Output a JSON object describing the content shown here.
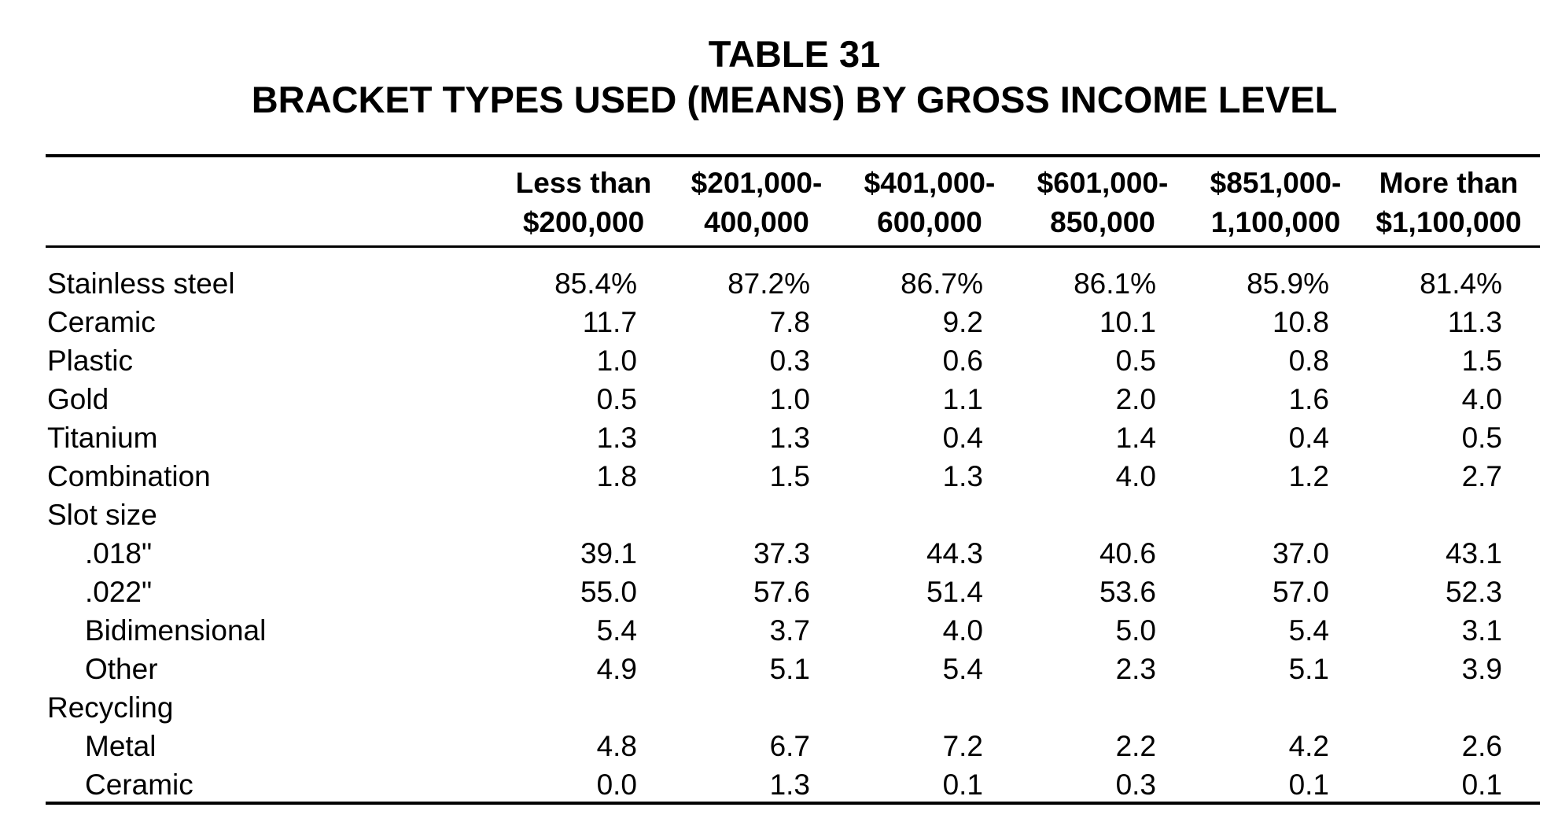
{
  "title": {
    "line1": "TABLE 31",
    "line2": "BRACKET TYPES USED (MEANS) BY GROSS INCOME LEVEL"
  },
  "columns": [
    {
      "line1": "Less than",
      "line2": "$200,000"
    },
    {
      "line1": "$201,000-",
      "line2": "400,000"
    },
    {
      "line1": "$401,000-",
      "line2": "600,000"
    },
    {
      "line1": "$601,000-",
      "line2": "850,000"
    },
    {
      "line1": "$851,000-",
      "line2": "1,100,000"
    },
    {
      "line1": "More than",
      "line2": "$1,100,000"
    }
  ],
  "rows": [
    {
      "label": "Stainless steel",
      "indent": false,
      "values": [
        "85.4%",
        "87.2%",
        "86.7%",
        "86.1%",
        "85.9%",
        "81.4%"
      ]
    },
    {
      "label": "Ceramic",
      "indent": false,
      "values": [
        "11.7",
        "7.8",
        "9.2",
        "10.1",
        "10.8",
        "11.3"
      ]
    },
    {
      "label": "Plastic",
      "indent": false,
      "values": [
        "1.0",
        "0.3",
        "0.6",
        "0.5",
        "0.8",
        "1.5"
      ]
    },
    {
      "label": "Gold",
      "indent": false,
      "values": [
        "0.5",
        "1.0",
        "1.1",
        "2.0",
        "1.6",
        "4.0"
      ]
    },
    {
      "label": "Titanium",
      "indent": false,
      "values": [
        "1.3",
        "1.3",
        "0.4",
        "1.4",
        "0.4",
        "0.5"
      ]
    },
    {
      "label": "Combination",
      "indent": false,
      "values": [
        "1.8",
        "1.5",
        "1.3",
        "4.0",
        "1.2",
        "2.7"
      ]
    },
    {
      "label": "Slot size",
      "indent": false,
      "values": []
    },
    {
      "label": ".018\"",
      "indent": true,
      "values": [
        "39.1",
        "37.3",
        "44.3",
        "40.6",
        "37.0",
        "43.1"
      ]
    },
    {
      "label": ".022\"",
      "indent": true,
      "values": [
        "55.0",
        "57.6",
        "51.4",
        "53.6",
        "57.0",
        "52.3"
      ]
    },
    {
      "label": "Bidimensional",
      "indent": true,
      "values": [
        "5.4",
        "3.7",
        "4.0",
        "5.0",
        "5.4",
        "3.1"
      ]
    },
    {
      "label": "Other",
      "indent": true,
      "values": [
        "4.9",
        "5.1",
        "5.4",
        "2.3",
        "5.1",
        "3.9"
      ]
    },
    {
      "label": "Recycling",
      "indent": false,
      "values": []
    },
    {
      "label": "Metal",
      "indent": true,
      "values": [
        "4.8",
        "6.7",
        "7.2",
        "2.2",
        "4.2",
        "2.6"
      ]
    },
    {
      "label": "Ceramic",
      "indent": true,
      "values": [
        "0.0",
        "1.3",
        "0.1",
        "0.3",
        "0.1",
        "0.1"
      ]
    }
  ]
}
